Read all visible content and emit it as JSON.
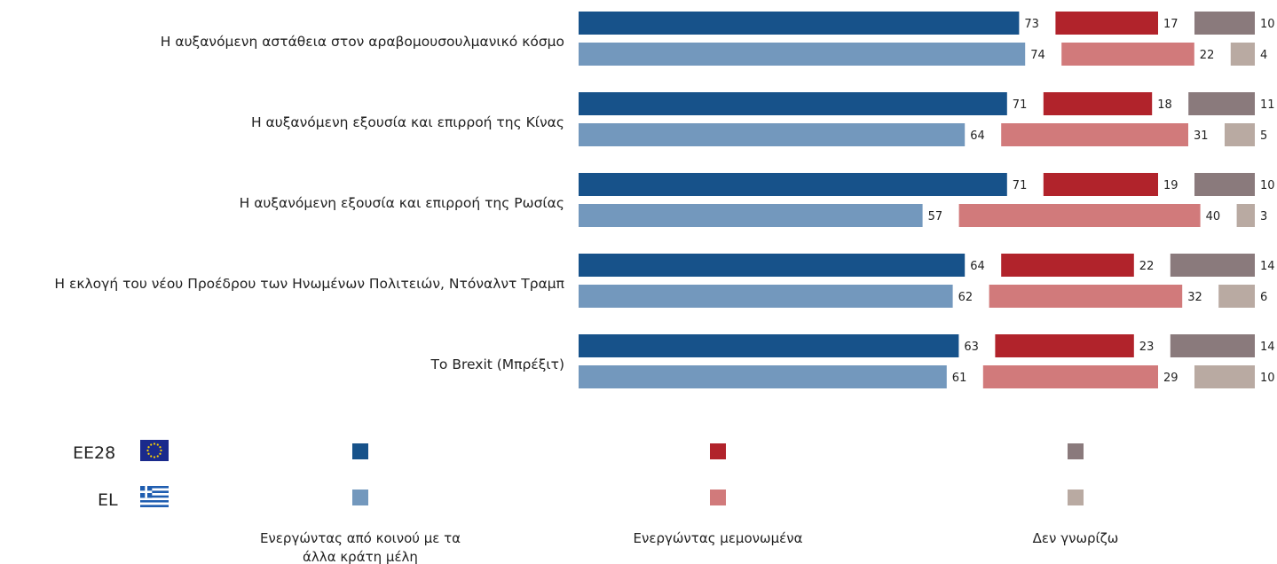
{
  "chart_data": {
    "type": "bar",
    "orientation": "horizontal",
    "stacked": true,
    "categories": [
      "Η αυξανόμενη αστάθεια στον αραβομουσουλμανικό κόσμο",
      "Η αυξανόμενη εξουσία και επιρροή της Κίνας",
      "Η αυξανόμενη εξουσία και επιρροή της Ρωσίας",
      "Η εκλογή του νέου Προέδρου των Ηνωμένων Πολιτειών, Ντόναλντ Τραμπ",
      "Το Brexit (Μπρέξιτ)"
    ],
    "groups": [
      {
        "name": "EE28",
        "series": [
          {
            "name": "Ενεργώντας από κοινού με τα άλλα κράτη μέλη",
            "color": "#17528a",
            "values": [
              73,
              71,
              71,
              64,
              63
            ]
          },
          {
            "name": "Ενεργώντας μεμονωμένα",
            "color": "#b1232b",
            "values": [
              17,
              18,
              19,
              22,
              23
            ]
          },
          {
            "name": "Δεν γνωρίζω",
            "color": "#8a7a7c",
            "values": [
              10,
              11,
              10,
              14,
              14
            ]
          }
        ]
      },
      {
        "name": "EL",
        "series": [
          {
            "name": "Ενεργώντας από κοινού με τα άλλα κράτη μέλη",
            "color": "#7398bd",
            "values": [
              74,
              64,
              57,
              62,
              61
            ]
          },
          {
            "name": "Ενεργώντας μεμονωμένα",
            "color": "#d17a7b",
            "values": [
              22,
              31,
              40,
              32,
              29
            ]
          },
          {
            "name": "Δεν γνωρίζω",
            "color": "#b9aaa2",
            "values": [
              4,
              5,
              3,
              6,
              10
            ]
          }
        ]
      }
    ],
    "xlim": [
      0,
      100
    ],
    "grid": false,
    "legend": {
      "placement": "bottom",
      "rows": [
        "EE28",
        "EL"
      ],
      "icons": [
        "eu-flag-icon",
        "greek-flag-icon"
      ],
      "columns": [
        "Ενεργώντας από κοινού με τα άλλα κράτη μέλη",
        "Ενεργώντας μεμονωμένα",
        "Δεν γνωρίζω"
      ]
    }
  }
}
